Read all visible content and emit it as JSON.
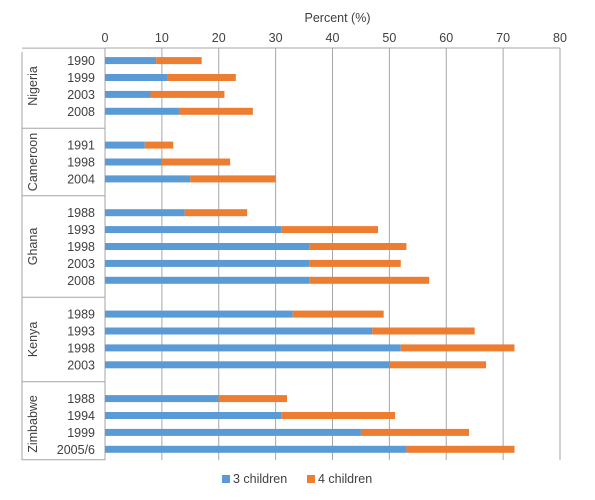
{
  "chart_data": {
    "type": "bar",
    "stacked": true,
    "orientation": "horizontal",
    "title": "",
    "xlabel": "Percent (%)",
    "ylabel": "",
    "xlim": [
      0,
      80
    ],
    "xticks": [
      0,
      10,
      20,
      30,
      40,
      50,
      60,
      70,
      80
    ],
    "x_axis_position": "top",
    "grid": "vertical",
    "legend": {
      "position": "bottom"
    },
    "groups": [
      {
        "name": "Nigeria",
        "years": [
          "1990",
          "1999",
          "2003",
          "2008"
        ]
      },
      {
        "name": "Cameroon",
        "years": [
          "1991",
          "1998",
          "2004"
        ]
      },
      {
        "name": "Ghana",
        "years": [
          "1988",
          "1993",
          "1998",
          "2003",
          "2008"
        ]
      },
      {
        "name": "Kenya",
        "years": [
          "1989",
          "1993",
          "1998",
          "2003"
        ]
      },
      {
        "name": "Zimbabwe",
        "years": [
          "1988",
          "1994",
          "1999",
          "2005/6"
        ]
      }
    ],
    "series": [
      {
        "name": "3 children",
        "color": "#5B9BD5",
        "values": [
          9,
          11,
          8,
          13,
          7,
          10,
          15,
          14,
          31,
          36,
          36,
          36,
          33,
          47,
          52,
          50,
          20,
          31,
          45,
          53
        ]
      },
      {
        "name": "4 children",
        "color": "#ED7D31",
        "values": [
          8,
          12,
          13,
          13,
          5,
          12,
          15,
          11,
          17,
          17,
          16,
          21,
          16,
          18,
          20,
          17,
          12,
          20,
          19,
          19
        ]
      }
    ]
  }
}
